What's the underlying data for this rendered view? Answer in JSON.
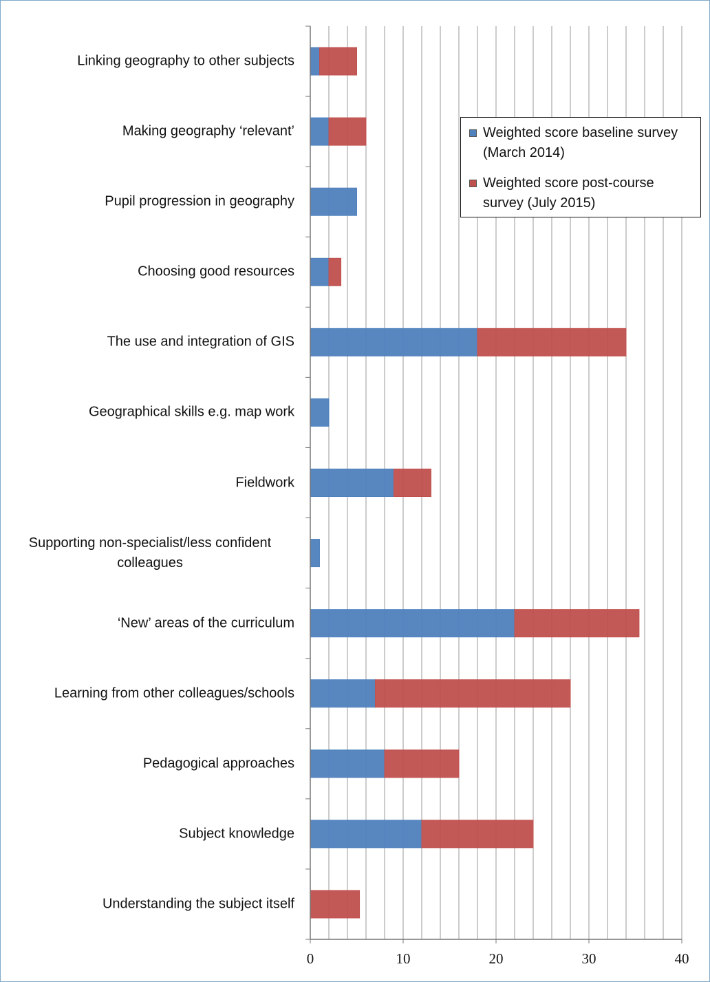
{
  "chart_data": {
    "type": "stacked_barh",
    "categories": [
      "Linking geography to other subjects",
      "Making geography ‘relevant’",
      "Pupil progression in geography",
      "Choosing good resources",
      "The use and integration of GIS",
      "Geographical skills e.g. map work",
      "Fieldwork",
      "Supporting non-specialist/less confident colleagues",
      "‘New’ areas of the curriculum",
      "Learning from other colleagues/schools",
      "Pedagogical approaches",
      "Subject knowledge",
      "Understanding the subject itself"
    ],
    "series": [
      {
        "name": "Weighted score baseline survey (March 2014)",
        "color": "#4f81bd",
        "values": [
          1,
          2,
          5,
          2,
          18,
          2,
          9,
          1,
          22,
          7,
          8,
          12,
          0
        ]
      },
      {
        "name": "Weighted score post-course survey (July 2015)",
        "color": "#c0504d",
        "values": [
          4,
          4,
          0,
          1.3,
          16,
          0,
          4,
          0,
          13.4,
          21,
          8,
          12,
          5.3
        ]
      }
    ],
    "xlim": [
      0,
      40
    ],
    "xticks": [
      0,
      10,
      20,
      30,
      40
    ],
    "xminor_ticks": [
      2,
      4,
      6,
      8,
      12,
      14,
      16,
      18,
      22,
      24,
      26,
      28,
      32,
      34,
      36,
      38
    ],
    "grid": true,
    "legend": "upper right"
  }
}
